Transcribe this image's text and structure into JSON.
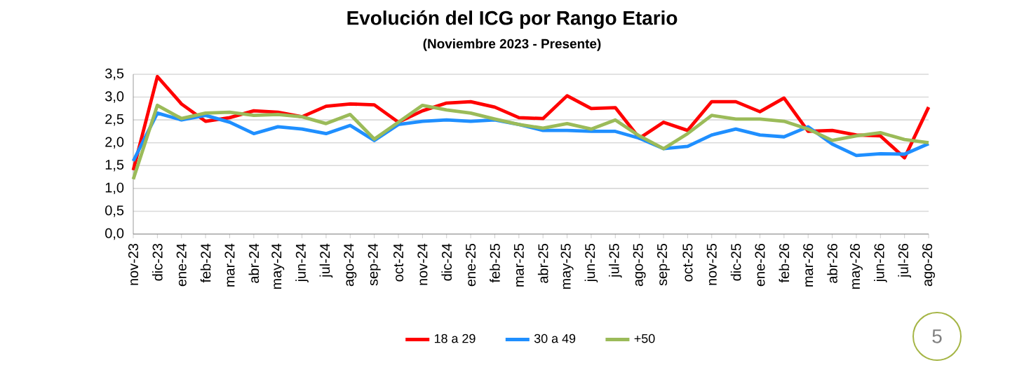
{
  "chart_data": {
    "type": "line",
    "title": "Evolución del ICG por Rango Etario",
    "subtitle": "(Noviembre 2023 - Presente)",
    "categories": [
      "nov-23",
      "dic-23",
      "ene-24",
      "feb-24",
      "mar-24",
      "abr-24",
      "may-24",
      "jun-24",
      "jul-24",
      "ago-24",
      "sep-24",
      "oct-24",
      "nov-24",
      "dic-24",
      "ene-25",
      "feb-25",
      "mar-25",
      "abr-25",
      "may-25",
      "jun-25",
      "jul-25",
      "ago-25",
      "sep-25",
      "oct-25",
      "nov-25",
      "dic-25",
      "ene-26",
      "feb-26",
      "mar-26",
      "abr-26",
      "may-26",
      "jun-26",
      "jul-26",
      "ago-26"
    ],
    "series": [
      {
        "name": "18 a 29",
        "color": "#ff0000",
        "values": [
          1.4,
          3.45,
          2.85,
          2.47,
          2.55,
          2.7,
          2.67,
          2.57,
          2.8,
          2.85,
          2.83,
          2.45,
          2.7,
          2.87,
          2.9,
          2.78,
          2.55,
          2.53,
          3.03,
          2.75,
          2.77,
          2.1,
          2.45,
          2.27,
          2.9,
          2.9,
          2.68,
          2.98,
          2.25,
          2.27,
          2.17,
          2.15,
          1.67,
          2.78
        ]
      },
      {
        "name": "30 a 49",
        "color": "#1f8fff",
        "values": [
          1.6,
          2.65,
          2.5,
          2.6,
          2.45,
          2.2,
          2.35,
          2.3,
          2.2,
          2.38,
          2.05,
          2.4,
          2.47,
          2.5,
          2.47,
          2.5,
          2.4,
          2.27,
          2.27,
          2.25,
          2.25,
          2.1,
          1.87,
          1.92,
          2.17,
          2.3,
          2.17,
          2.13,
          2.35,
          1.97,
          1.72,
          1.76,
          1.75,
          1.98
        ]
      },
      {
        "name": "+50",
        "color": "#9bbb59",
        "values": [
          1.2,
          2.82,
          2.53,
          2.65,
          2.67,
          2.6,
          2.62,
          2.57,
          2.42,
          2.62,
          2.08,
          2.45,
          2.82,
          2.72,
          2.65,
          2.52,
          2.4,
          2.32,
          2.42,
          2.3,
          2.5,
          2.15,
          1.87,
          2.2,
          2.6,
          2.52,
          2.52,
          2.47,
          2.3,
          2.05,
          2.15,
          2.22,
          2.07,
          2.0
        ]
      }
    ],
    "ylim": [
      0,
      3.5
    ],
    "yticks": [
      {
        "value": 0,
        "label": "0,0"
      },
      {
        "value": 0.5,
        "label": "0,5"
      },
      {
        "value": 1,
        "label": "1,0"
      },
      {
        "value": 1.5,
        "label": "1,5"
      },
      {
        "value": 2,
        "label": "2,0"
      },
      {
        "value": 2.5,
        "label": "2,5"
      },
      {
        "value": 3,
        "label": "3,0"
      },
      {
        "value": 3.5,
        "label": "3,5"
      }
    ],
    "grid": "y",
    "legend": "bottom",
    "marker": "none",
    "line_style": "solid",
    "annotations": [
      "5"
    ]
  }
}
